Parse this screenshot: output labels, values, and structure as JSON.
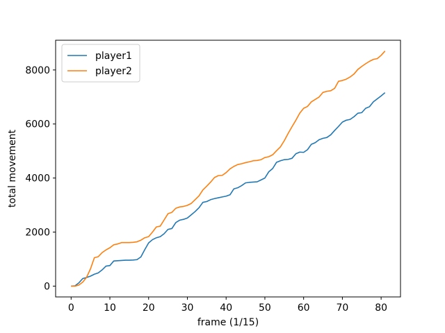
{
  "chart_data": {
    "type": "line",
    "title": "",
    "xlabel": "frame (1/15)",
    "ylabel": "total movement",
    "xlim": [
      -4,
      85
    ],
    "ylim": [
      -400,
      9100
    ],
    "xticks": [
      0,
      10,
      20,
      30,
      40,
      50,
      60,
      70,
      80
    ],
    "yticks": [
      0,
      2000,
      4000,
      6000,
      8000
    ],
    "grid": false,
    "legend_position": "top-left",
    "series": [
      {
        "name": "player1",
        "color": "#1f77b4",
        "x": [
          0,
          1,
          2,
          3,
          4,
          5,
          6,
          7,
          8,
          9,
          10,
          11,
          12,
          13,
          14,
          15,
          16,
          17,
          18,
          19,
          20,
          21,
          22,
          23,
          24,
          25,
          26,
          27,
          28,
          29,
          30,
          31,
          32,
          33,
          34,
          35,
          36,
          37,
          38,
          39,
          40,
          41,
          42,
          43,
          44,
          45,
          46,
          47,
          48,
          49,
          50,
          51,
          52,
          53,
          54,
          55,
          56,
          57,
          58,
          59,
          60,
          61,
          62,
          63,
          64,
          65,
          66,
          67,
          68,
          69,
          70,
          71,
          72,
          73,
          74,
          75,
          76,
          77,
          78,
          79,
          80,
          81
        ],
        "values": [
          0,
          10,
          120,
          280,
          320,
          370,
          440,
          490,
          600,
          740,
          760,
          930,
          940,
          950,
          960,
          960,
          965,
          980,
          1080,
          1350,
          1600,
          1720,
          1790,
          1830,
          1940,
          2100,
          2130,
          2350,
          2440,
          2470,
          2520,
          2640,
          2760,
          2900,
          3100,
          3130,
          3200,
          3240,
          3270,
          3300,
          3330,
          3380,
          3600,
          3640,
          3720,
          3820,
          3840,
          3850,
          3860,
          3930,
          4000,
          4230,
          4350,
          4580,
          4640,
          4680,
          4690,
          4730,
          4900,
          4960,
          4950,
          5050,
          5250,
          5310,
          5420,
          5470,
          5500,
          5600,
          5760,
          5910,
          6070,
          6140,
          6170,
          6270,
          6400,
          6420,
          6580,
          6640,
          6820,
          6930,
          7040,
          7160
        ]
      },
      {
        "name": "player2",
        "color": "#ff7f0e",
        "x": [
          0,
          1,
          2,
          3,
          4,
          5,
          6,
          7,
          8,
          9,
          10,
          11,
          12,
          13,
          14,
          15,
          16,
          17,
          18,
          19,
          20,
          21,
          22,
          23,
          24,
          25,
          26,
          27,
          28,
          29,
          30,
          31,
          32,
          33,
          34,
          35,
          36,
          37,
          38,
          39,
          40,
          41,
          42,
          43,
          44,
          45,
          46,
          47,
          48,
          49,
          50,
          51,
          52,
          53,
          54,
          55,
          56,
          57,
          58,
          59,
          60,
          61,
          62,
          63,
          64,
          65,
          66,
          67,
          68,
          69,
          70,
          71,
          72,
          73,
          74,
          75,
          76,
          77,
          78,
          79,
          80,
          81
        ],
        "values": [
          0,
          0,
          40,
          150,
          330,
          640,
          1050,
          1090,
          1240,
          1340,
          1420,
          1530,
          1560,
          1610,
          1610,
          1610,
          1620,
          1640,
          1700,
          1790,
          1830,
          2000,
          2190,
          2220,
          2450,
          2680,
          2730,
          2880,
          2930,
          2950,
          2990,
          3060,
          3200,
          3340,
          3560,
          3700,
          3850,
          4020,
          4090,
          4100,
          4200,
          4340,
          4430,
          4500,
          4530,
          4570,
          4600,
          4640,
          4650,
          4680,
          4760,
          4790,
          4860,
          5010,
          5150,
          5380,
          5650,
          5900,
          6140,
          6400,
          6580,
          6650,
          6820,
          6910,
          7000,
          7170,
          7210,
          7230,
          7320,
          7580,
          7610,
          7660,
          7740,
          7850,
          8020,
          8130,
          8230,
          8320,
          8390,
          8420,
          8540,
          8700
        ]
      }
    ]
  }
}
